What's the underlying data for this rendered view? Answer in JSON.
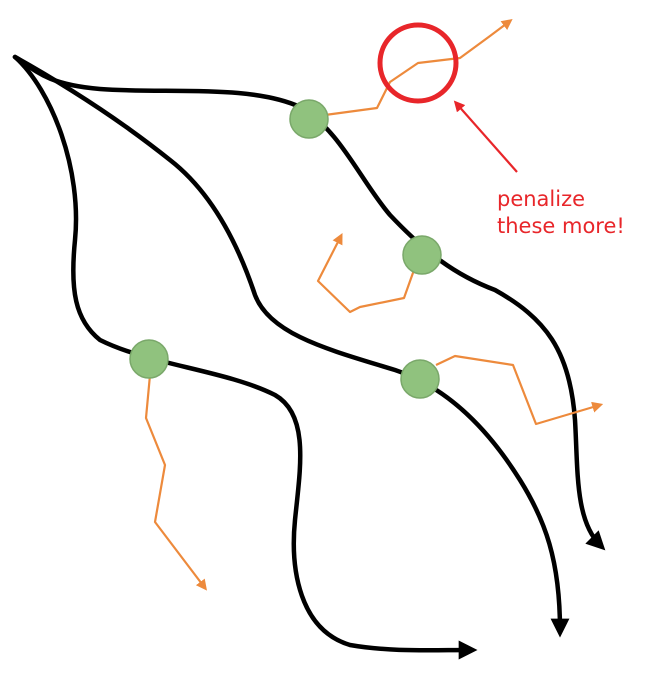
{
  "annotation": {
    "line1": "penalize",
    "line2": "these more!",
    "color": "#e8262a"
  },
  "colors": {
    "trajectory": "#000000",
    "state_node_fill": "#90c27e",
    "state_node_stroke": "#7aa86a",
    "rollout": "#ed8a3c",
    "highlight": "#e8262a"
  },
  "elements": {
    "trajectories": 3,
    "state_nodes": 4,
    "rollout_branches": 4
  }
}
